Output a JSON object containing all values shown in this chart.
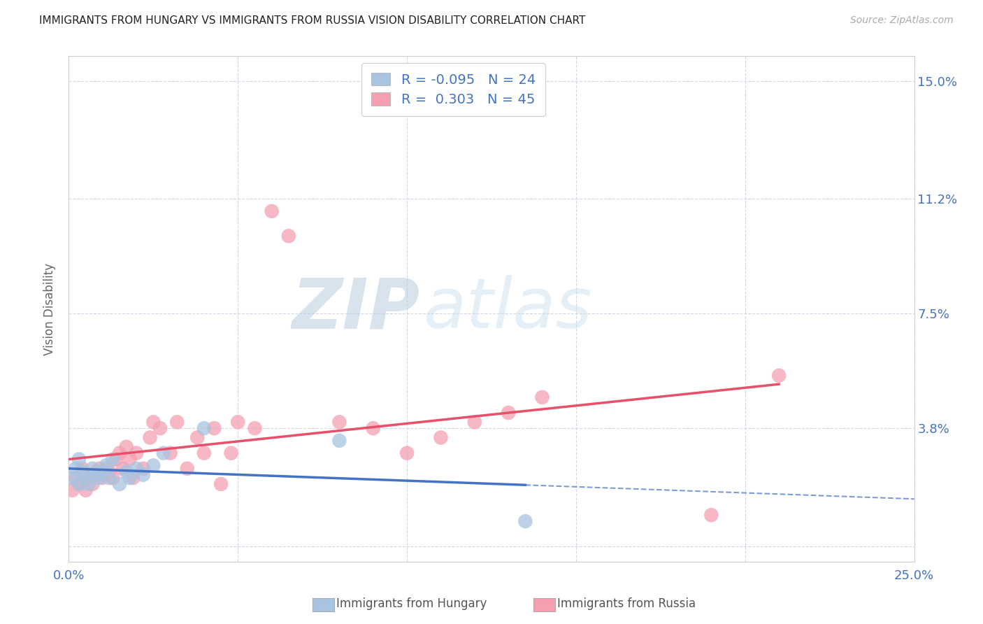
{
  "title": "IMMIGRANTS FROM HUNGARY VS IMMIGRANTS FROM RUSSIA VISION DISABILITY CORRELATION CHART",
  "source": "Source: ZipAtlas.com",
  "ylabel": "Vision Disability",
  "xlim": [
    0.0,
    0.25
  ],
  "ylim": [
    -0.005,
    0.158
  ],
  "yticks": [
    0.0,
    0.038,
    0.075,
    0.112,
    0.15
  ],
  "ytick_labels": [
    "",
    "3.8%",
    "7.5%",
    "11.2%",
    "15.0%"
  ],
  "xticks": [
    0.0,
    0.05,
    0.1,
    0.15,
    0.2,
    0.25
  ],
  "xtick_labels": [
    "0.0%",
    "",
    "",
    "",
    "",
    "25.0%"
  ],
  "hungary_R": -0.095,
  "hungary_N": 24,
  "russia_R": 0.303,
  "russia_N": 45,
  "hungary_color": "#a8c4e0",
  "russia_color": "#f4a0b0",
  "hungary_line_color": "#4472c4",
  "russia_line_color": "#e8506a",
  "title_color": "#222222",
  "axis_label_color": "#4472c4",
  "watermark_zip_color": "#c8d8ea",
  "watermark_atlas_color": "#d8e8f0",
  "legend_text_color": "#4472c4",
  "hungary_x": [
    0.001,
    0.002,
    0.003,
    0.003,
    0.004,
    0.005,
    0.006,
    0.007,
    0.008,
    0.009,
    0.01,
    0.011,
    0.012,
    0.013,
    0.015,
    0.017,
    0.018,
    0.02,
    0.022,
    0.025,
    0.028,
    0.04,
    0.08,
    0.135
  ],
  "hungary_y": [
    0.022,
    0.025,
    0.02,
    0.028,
    0.024,
    0.022,
    0.02,
    0.025,
    0.023,
    0.022,
    0.024,
    0.026,
    0.022,
    0.028,
    0.02,
    0.024,
    0.022,
    0.025,
    0.023,
    0.026,
    0.03,
    0.038,
    0.034,
    0.008
  ],
  "russia_x": [
    0.001,
    0.002,
    0.003,
    0.004,
    0.005,
    0.006,
    0.007,
    0.008,
    0.009,
    0.01,
    0.011,
    0.012,
    0.013,
    0.014,
    0.015,
    0.016,
    0.017,
    0.018,
    0.019,
    0.02,
    0.022,
    0.024,
    0.025,
    0.027,
    0.03,
    0.032,
    0.035,
    0.038,
    0.04,
    0.043,
    0.045,
    0.048,
    0.05,
    0.055,
    0.06,
    0.065,
    0.08,
    0.09,
    0.1,
    0.11,
    0.12,
    0.13,
    0.14,
    0.19,
    0.21
  ],
  "russia_y": [
    0.018,
    0.022,
    0.02,
    0.025,
    0.018,
    0.022,
    0.02,
    0.024,
    0.025,
    0.022,
    0.025,
    0.024,
    0.022,
    0.028,
    0.03,
    0.025,
    0.032,
    0.028,
    0.022,
    0.03,
    0.025,
    0.035,
    0.04,
    0.038,
    0.03,
    0.04,
    0.025,
    0.035,
    0.03,
    0.038,
    0.02,
    0.03,
    0.04,
    0.038,
    0.108,
    0.1,
    0.04,
    0.038,
    0.03,
    0.035,
    0.04,
    0.043,
    0.048,
    0.01,
    0.055
  ],
  "background_color": "#ffffff",
  "grid_color": "#d0d8e8"
}
